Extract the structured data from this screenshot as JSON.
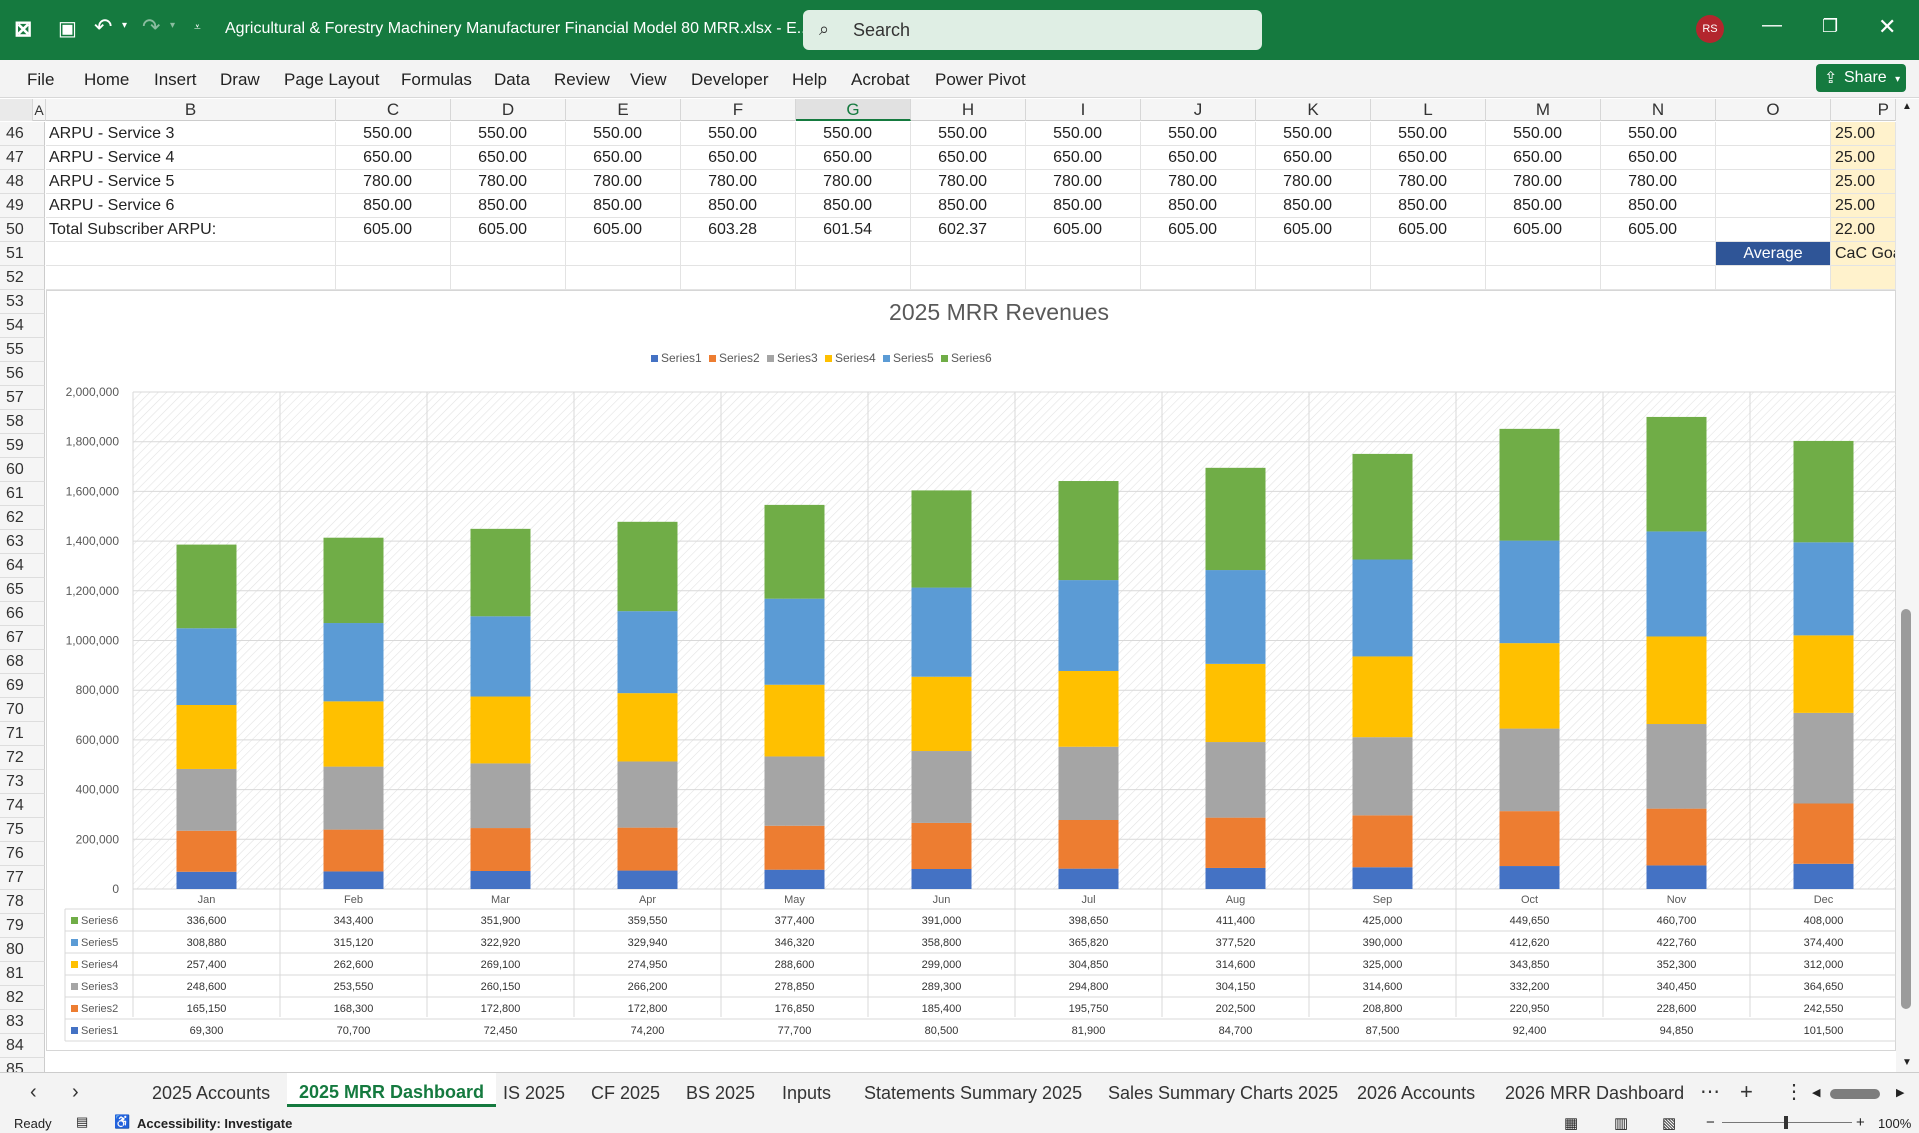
{
  "titlebar": {
    "filename": "Agricultural & Forestry Machinery Manufacturer Financial Model 80 MRR.xlsx  -  E...",
    "search_placeholder": "Search",
    "user_initials": "RS"
  },
  "menu": [
    "File",
    "Home",
    "Insert",
    "Draw",
    "Page Layout",
    "Formulas",
    "Data",
    "Review",
    "View",
    "Developer",
    "Help",
    "Acrobat",
    "Power Pivot"
  ],
  "share_label": "Share",
  "columns": [
    "A",
    "B",
    "C",
    "D",
    "E",
    "F",
    "G",
    "H",
    "I",
    "J",
    "K",
    "L",
    "M",
    "N",
    "O",
    "P"
  ],
  "rows_visible": [
    "46",
    "47",
    "48",
    "49",
    "50",
    "51",
    "52",
    "53",
    "54",
    "55",
    "56",
    "57",
    "58",
    "59",
    "60",
    "61",
    "62",
    "63",
    "64",
    "65",
    "66",
    "67",
    "68",
    "69",
    "70",
    "71",
    "72",
    "73",
    "74",
    "75",
    "76",
    "77",
    "78",
    "79",
    "80",
    "81",
    "82",
    "83",
    "84",
    "85"
  ],
  "table": [
    {
      "label": "ARPU - Service 3",
      "values": [
        "550.00",
        "550.00",
        "550.00",
        "550.00",
        "550.00",
        "550.00",
        "550.00",
        "550.00",
        "550.00",
        "550.00",
        "550.00",
        "550.00"
      ],
      "p": "25.00"
    },
    {
      "label": "ARPU - Service 4",
      "values": [
        "650.00",
        "650.00",
        "650.00",
        "650.00",
        "650.00",
        "650.00",
        "650.00",
        "650.00",
        "650.00",
        "650.00",
        "650.00",
        "650.00"
      ],
      "p": "25.00"
    },
    {
      "label": "ARPU - Service 5",
      "values": [
        "780.00",
        "780.00",
        "780.00",
        "780.00",
        "780.00",
        "780.00",
        "780.00",
        "780.00",
        "780.00",
        "780.00",
        "780.00",
        "780.00"
      ],
      "p": "25.00"
    },
    {
      "label": "ARPU - Service 6",
      "values": [
        "850.00",
        "850.00",
        "850.00",
        "850.00",
        "850.00",
        "850.00",
        "850.00",
        "850.00",
        "850.00",
        "850.00",
        "850.00",
        "850.00"
      ],
      "p": "25.00"
    },
    {
      "label": "Total Subscriber ARPU:",
      "values": [
        "605.00",
        "605.00",
        "605.00",
        "603.28",
        "601.54",
        "602.37",
        "605.00",
        "605.00",
        "605.00",
        "605.00",
        "605.00",
        "605.00"
      ],
      "p": "22.00"
    }
  ],
  "row51": {
    "average": "Average",
    "cac": "CaC Goa"
  },
  "chart_data": {
    "type": "bar",
    "stacked": true,
    "title": "2025 MRR Revenues",
    "categories": [
      "Jan",
      "Feb",
      "Mar",
      "Apr",
      "May",
      "Jun",
      "Jul",
      "Aug",
      "Sep",
      "Oct",
      "Nov",
      "Dec"
    ],
    "ylim": [
      0,
      2000000
    ],
    "yticks": [
      "2,000,000",
      "1,800,000",
      "1,600,000",
      "1,400,000",
      "1,200,000",
      "1,000,000",
      "800,000",
      "600,000",
      "400,000",
      "200,000",
      "0"
    ],
    "legend_position": "top",
    "series": [
      {
        "name": "Series1",
        "color": "#4472c4",
        "values": [
          69300,
          70700,
          72450,
          74200,
          77700,
          80500,
          81900,
          84700,
          87500,
          92400,
          94850,
          101500
        ],
        "labels": [
          "69,300",
          "70,700",
          "72,450",
          "74,200",
          "77,700",
          "80,500",
          "81,900",
          "84,700",
          "87,500",
          "92,400",
          "94,850",
          "101,500"
        ]
      },
      {
        "name": "Series2",
        "color": "#ed7d31",
        "values": [
          165150,
          168300,
          172800,
          172800,
          176850,
          185400,
          195750,
          202500,
          208800,
          220950,
          228600,
          242550
        ],
        "labels": [
          "165,150",
          "168,300",
          "172,800",
          "172,800",
          "176,850",
          "185,400",
          "195,750",
          "202,500",
          "208,800",
          "220,950",
          "228,600",
          "242,550"
        ]
      },
      {
        "name": "Series3",
        "color": "#a5a5a5",
        "values": [
          248600,
          253550,
          260150,
          266200,
          278850,
          289300,
          294800,
          304150,
          314600,
          332200,
          340450,
          364650
        ],
        "labels": [
          "248,600",
          "253,550",
          "260,150",
          "266,200",
          "278,850",
          "289,300",
          "294,800",
          "304,150",
          "314,600",
          "332,200",
          "340,450",
          "364,650"
        ]
      },
      {
        "name": "Series4",
        "color": "#ffc000",
        "values": [
          257400,
          262600,
          269100,
          274950,
          288600,
          299000,
          304850,
          314600,
          325000,
          343850,
          352300,
          312000
        ],
        "labels": [
          "257,400",
          "262,600",
          "269,100",
          "274,950",
          "288,600",
          "299,000",
          "304,850",
          "314,600",
          "325,000",
          "343,850",
          "352,300",
          "312,000"
        ]
      },
      {
        "name": "Series5",
        "color": "#5b9bd5",
        "values": [
          308880,
          315120,
          322920,
          329940,
          346320,
          358800,
          365820,
          377520,
          390000,
          412620,
          422760,
          374400
        ],
        "labels": [
          "308,880",
          "315,120",
          "322,920",
          "329,940",
          "346,320",
          "358,800",
          "365,820",
          "377,520",
          "390,000",
          "412,620",
          "422,760",
          "374,400"
        ]
      },
      {
        "name": "Series6",
        "color": "#70ad47",
        "values": [
          336600,
          343400,
          351900,
          359550,
          377400,
          391000,
          398650,
          411400,
          425000,
          449650,
          460700,
          408000
        ],
        "labels": [
          "336,600",
          "343,400",
          "351,900",
          "359,550",
          "377,400",
          "391,000",
          "398,650",
          "411,400",
          "425,000",
          "449,650",
          "460,700",
          "408,000"
        ]
      }
    ]
  },
  "sheet_tabs": [
    "2025 Accounts",
    "2025 MRR Dashboard",
    "IS 2025",
    "CF 2025",
    "BS 2025",
    "Inputs",
    "Statements Summary 2025",
    "Sales Summary Charts 2025",
    "2026 Accounts",
    "2026 MRR Dashboard"
  ],
  "status": {
    "ready": "Ready",
    "accessibility": "Accessibility: Investigate",
    "zoom": "100%"
  }
}
